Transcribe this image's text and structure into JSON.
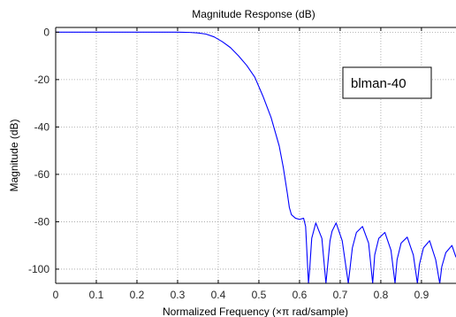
{
  "chart_data": {
    "type": "line",
    "title": "Magnitude Response (dB)",
    "xlabel": "Normalized Frequency  (×π rad/sample)",
    "ylabel": "Magnitude (dB)",
    "xlim": [
      0,
      0.985
    ],
    "ylim": [
      -106,
      2
    ],
    "grid": true,
    "legend_position": "top-right",
    "x_ticks": [
      0,
      0.1,
      0.2,
      0.3,
      0.4,
      0.5,
      0.6,
      0.7,
      0.8,
      0.9
    ],
    "x_tick_labels": [
      "0",
      "0.1",
      "0.2",
      "0.3",
      "0.4",
      "0.5",
      "0.6",
      "0.7",
      "0.8",
      "0.9"
    ],
    "y_ticks": [
      0,
      -20,
      -40,
      -60,
      -80,
      -100
    ],
    "y_tick_labels": [
      "0",
      "-20",
      "-40",
      "-60",
      "-80",
      "-100"
    ],
    "colors": {
      "line": "#0000ff",
      "grid": "#a0a0a0",
      "axes": "#000000"
    },
    "series": [
      {
        "name": "blman-40",
        "x": [
          0,
          0.05,
          0.1,
          0.15,
          0.2,
          0.25,
          0.3,
          0.33,
          0.35,
          0.37,
          0.39,
          0.41,
          0.43,
          0.45,
          0.47,
          0.49,
          0.51,
          0.53,
          0.55,
          0.56,
          0.57,
          0.575,
          0.58,
          0.59,
          0.6,
          0.61,
          0.615,
          0.622,
          0.625,
          0.63,
          0.64,
          0.655,
          0.665,
          0.675,
          0.68,
          0.69,
          0.705,
          0.72,
          0.73,
          0.74,
          0.755,
          0.77,
          0.78,
          0.785,
          0.795,
          0.81,
          0.825,
          0.835,
          0.84,
          0.85,
          0.865,
          0.88,
          0.89,
          0.895,
          0.905,
          0.92,
          0.935,
          0.945,
          0.95,
          0.96,
          0.975,
          0.985
        ],
        "y": [
          0,
          0,
          0,
          0,
          0,
          0,
          0,
          -0.1,
          -0.3,
          -0.8,
          -2,
          -4,
          -6.5,
          -10,
          -14,
          -19,
          -27,
          -36,
          -48,
          -57,
          -68,
          -74,
          -77,
          -78.5,
          -79,
          -78.5,
          -82,
          -106,
          -100,
          -87,
          -80.5,
          -87,
          -106,
          -88,
          -84,
          -80.5,
          -88,
          -106,
          -91,
          -84.5,
          -82,
          -89,
          -106,
          -94,
          -87,
          -84.5,
          -92,
          -106,
          -96,
          -89,
          -86.5,
          -94,
          -106,
          -98,
          -91,
          -88,
          -96,
          -106,
          -99,
          -93,
          -90,
          -95
        ]
      }
    ]
  }
}
